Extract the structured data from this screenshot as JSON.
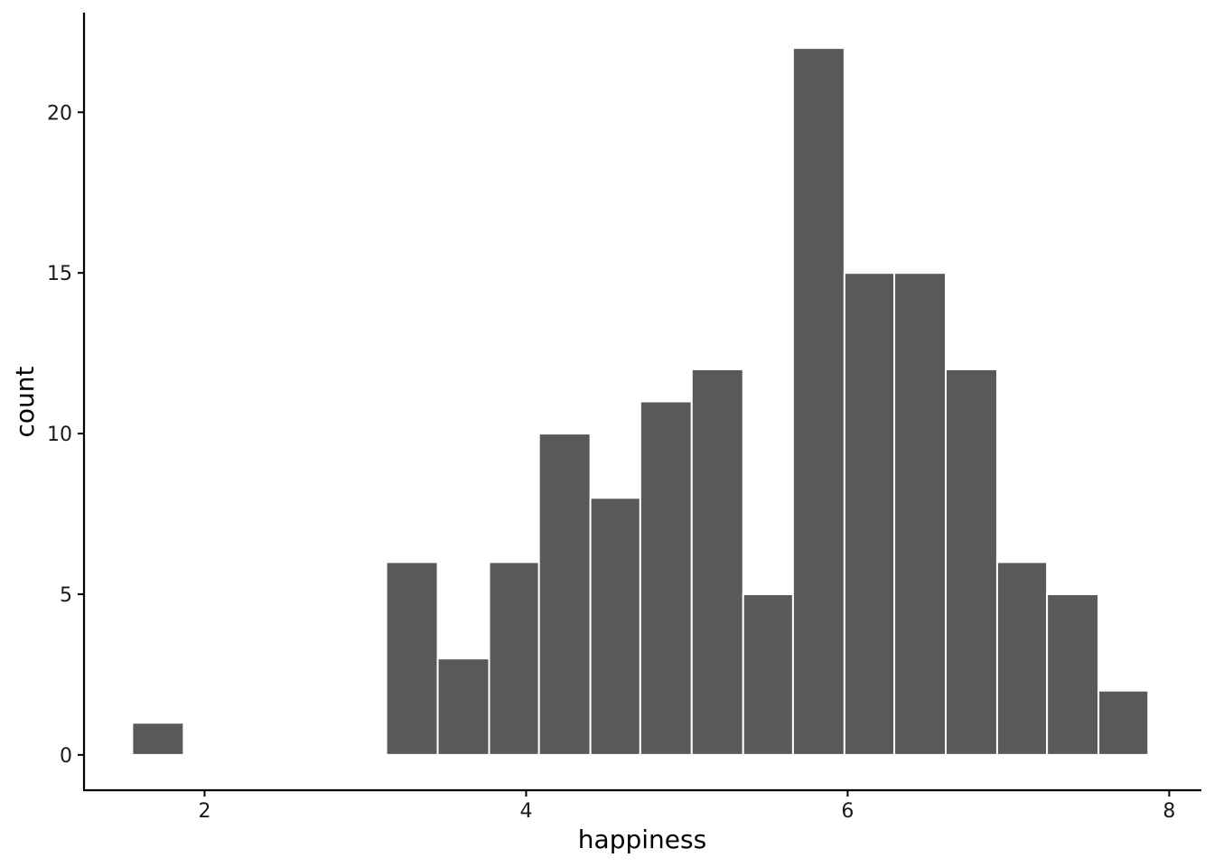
{
  "chart_data": {
    "type": "bar",
    "subtype": "histogram",
    "title": "",
    "xlabel": "happiness",
    "ylabel": "count",
    "bin_width": 0.3158,
    "bins": [
      {
        "x_start": 1.55,
        "x_end": 1.87,
        "count": 1
      },
      {
        "x_start": 3.13,
        "x_end": 3.45,
        "count": 6
      },
      {
        "x_start": 3.45,
        "x_end": 3.77,
        "count": 3
      },
      {
        "x_start": 3.77,
        "x_end": 4.08,
        "count": 6
      },
      {
        "x_start": 4.08,
        "x_end": 4.4,
        "count": 10
      },
      {
        "x_start": 4.4,
        "x_end": 4.71,
        "count": 8
      },
      {
        "x_start": 4.71,
        "x_end": 5.03,
        "count": 11
      },
      {
        "x_start": 5.03,
        "x_end": 5.35,
        "count": 12
      },
      {
        "x_start": 5.35,
        "x_end": 5.66,
        "count": 5
      },
      {
        "x_start": 5.66,
        "x_end": 5.98,
        "count": 22
      },
      {
        "x_start": 5.98,
        "x_end": 6.29,
        "count": 15
      },
      {
        "x_start": 6.29,
        "x_end": 6.61,
        "count": 15
      },
      {
        "x_start": 6.61,
        "x_end": 6.93,
        "count": 12
      },
      {
        "x_start": 6.93,
        "x_end": 7.24,
        "count": 6
      },
      {
        "x_start": 7.24,
        "x_end": 7.56,
        "count": 5
      },
      {
        "x_start": 7.56,
        "x_end": 7.87,
        "count": 2
      }
    ],
    "xlim": [
      1.25,
      8.2
    ],
    "ylim": [
      -1.1,
      23.1
    ],
    "xticks": [
      2,
      4,
      6,
      8
    ],
    "xtick_labels": [
      "2",
      "4",
      "6",
      "8"
    ],
    "yticks": [
      0,
      5,
      10,
      15,
      20
    ],
    "ytick_labels": [
      "0",
      "5",
      "10",
      "15",
      "20"
    ],
    "grid": false,
    "legend": "none",
    "colors": {
      "bar_fill": "#595959",
      "bar_stroke": "#ffffff",
      "axis": "#000000",
      "background": "#ffffff"
    }
  }
}
